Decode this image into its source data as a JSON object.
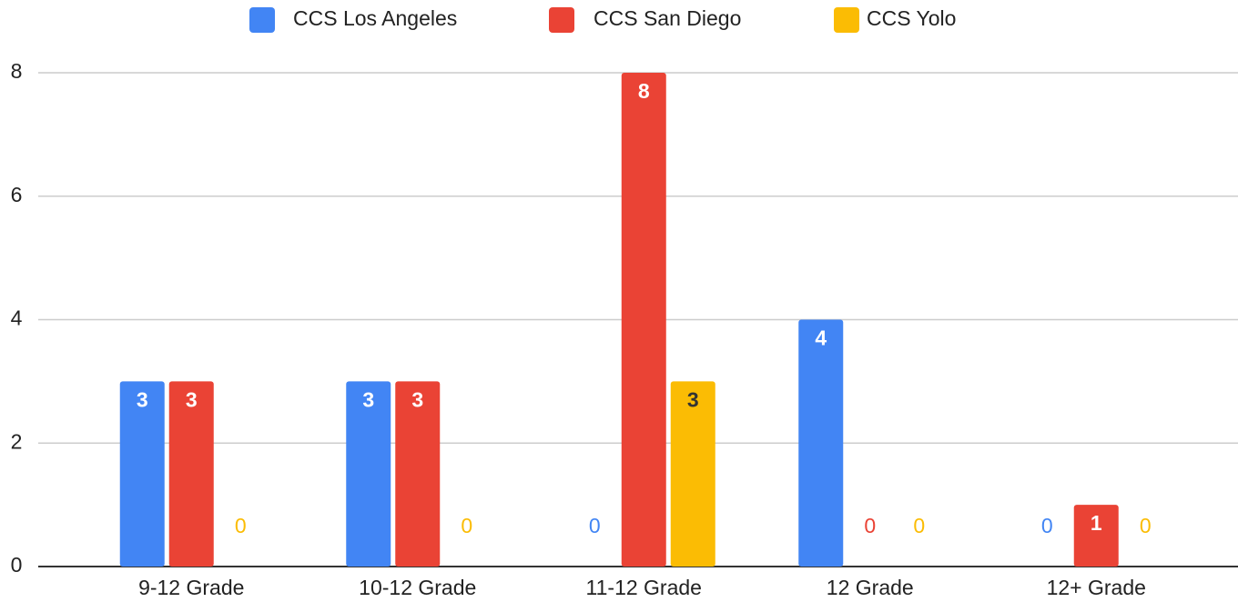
{
  "chart_data": {
    "type": "bar",
    "categories": [
      "9-12 Grade",
      "10-12 Grade",
      "11-12 Grade",
      "12 Grade",
      "12+ Grade"
    ],
    "series": [
      {
        "name": "CCS Los Angeles",
        "color": "#4285f4",
        "values": [
          3,
          3,
          0,
          4,
          0
        ]
      },
      {
        "name": "CCS San Diego",
        "color": "#ea4335",
        "values": [
          3,
          3,
          8,
          0,
          1
        ]
      },
      {
        "name": "CCS Yolo",
        "color": "#fbbc04",
        "values": [
          0,
          0,
          3,
          0,
          0
        ]
      }
    ],
    "ylim": [
      0,
      8
    ],
    "yticks": [
      0,
      2,
      4,
      6,
      8
    ],
    "grid": true,
    "legend": "top"
  }
}
